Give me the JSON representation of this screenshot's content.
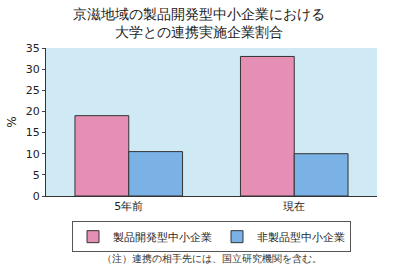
{
  "chart_data": {
    "type": "bar",
    "title": "京滋地域の製品開発型中小企業における\n大学との連携実施企業割合",
    "ylabel": "%",
    "categories": [
      "5年前",
      "現在"
    ],
    "series": [
      {
        "name": "製品開発型中小企業",
        "color": "#e58fb4",
        "values": [
          19,
          33
        ]
      },
      {
        "name": "非製品型中小企業",
        "color": "#7ab2e6",
        "values": [
          10.5,
          10
        ]
      }
    ],
    "ylim": [
      0,
      35
    ],
    "yticks": [
      0,
      5,
      10,
      15,
      20,
      25,
      30,
      35
    ],
    "grid": false,
    "legend": "bottom",
    "annotations": [
      "（注）連携の相手先には、国立研究機関を含む。"
    ]
  }
}
